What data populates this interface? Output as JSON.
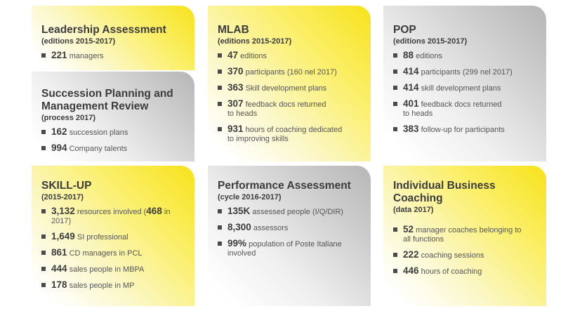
{
  "cards": {
    "leadership": {
      "title": "Leadership Assessment",
      "subtitle": "(editions 2015-2017)",
      "items": [
        {
          "num": "221",
          "text": " managers"
        }
      ]
    },
    "succession": {
      "title_line1": "Succession Planning and",
      "title_line2": "Management Review",
      "subtitle": "(process 2017)",
      "items": [
        {
          "num": "162",
          "text": " succession plans"
        },
        {
          "num": "994",
          "text": " Company talents"
        }
      ]
    },
    "mlab": {
      "title": "MLAB",
      "subtitle": "(editions 2015-2017)",
      "items": [
        {
          "num": "47",
          "text": " editions"
        },
        {
          "num": "370",
          "text": " participants (160 nel 2017)"
        },
        {
          "num": "363",
          "text": " Skill development plans"
        },
        {
          "num": "307",
          "text": " feedback docs returned to heads"
        },
        {
          "num": "931",
          "text": " hours of coaching dedicated to improving skills"
        }
      ]
    },
    "pop": {
      "title": "POP",
      "subtitle": "(editions 2015-2017)",
      "items": [
        {
          "num": "88",
          "text": " editions"
        },
        {
          "num": "414",
          "text": " participants (299 nel 2017)"
        },
        {
          "num": "414",
          "text": " skill development plans"
        },
        {
          "num": "401",
          "text": " feedback docs returned to heads"
        },
        {
          "num": "383",
          "text": " follow-up for participants"
        }
      ]
    },
    "skillup": {
      "title": "SKILL-UP",
      "subtitle": "(2015-2017)",
      "items": [
        {
          "num": "3,132",
          "text": " resources involved (",
          "num2": "468",
          "text2": " in 2017)"
        },
        {
          "num": "1,649",
          "text": " SI professional"
        },
        {
          "num": "861",
          "text": " CD managers in PCL"
        },
        {
          "num": "444",
          "text": " sales people in MBPA"
        },
        {
          "num": "178",
          "text": " sales people in MP"
        }
      ]
    },
    "performance": {
      "title": "Performance Assessment",
      "subtitle": "(cycle 2016-2017)",
      "items": [
        {
          "num": "135K",
          "text": " assessed people (I/Q/DIR)"
        },
        {
          "num": "8,300",
          "text": " assessors"
        },
        {
          "num": "99%",
          "text": " population of Poste Italiane involved"
        }
      ]
    },
    "coaching": {
      "title_line1": "Individual Business",
      "title_line2": "Coaching",
      "subtitle": "(data 2017)",
      "items": [
        {
          "num": "52",
          "text": " manager coaches belonging to all functions"
        },
        {
          "num": "222",
          "text": " coaching sessions"
        },
        {
          "num": "446",
          "text": " hours of coaching"
        }
      ]
    }
  }
}
